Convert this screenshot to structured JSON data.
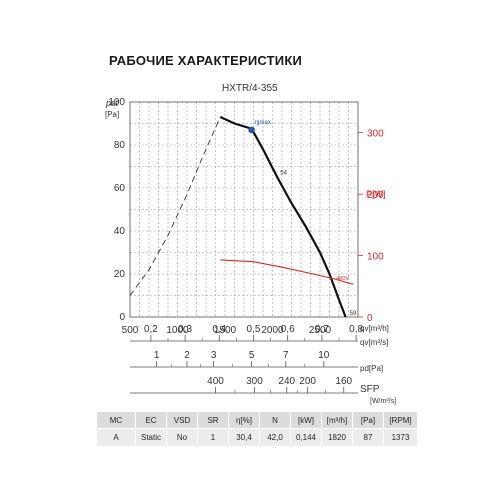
{
  "page": {
    "title": "РАБОЧИЕ ХАРАКТЕРИСТИКИ",
    "model": "HXTR/4-355"
  },
  "colors": {
    "curve": "#111111",
    "power": "#d62828",
    "etamax_point": "#2b4fb3",
    "grid": "#999999"
  },
  "chart_data": {
    "type": "line",
    "y_left": {
      "label": "pst",
      "unit": "[Pa]",
      "range": [
        0,
        100
      ],
      "ticks": [
        0,
        20,
        40,
        60,
        80,
        100
      ]
    },
    "y_right": {
      "label": "P[W]",
      "range": [
        0,
        350
      ],
      "ticks": [
        0,
        100,
        200,
        300
      ]
    },
    "x": {
      "label": "qv[m³/h]",
      "range": [
        500,
        2900
      ],
      "ticks": [
        500,
        1000,
        1500,
        2000,
        2500
      ]
    },
    "grid": true,
    "series": [
      {
        "role": "pressure",
        "curve_label": "54",
        "x": [
          1450,
          1600,
          1750,
          1800,
          1900,
          2050,
          2200,
          2350,
          2500,
          2600,
          2700,
          2770
        ],
        "y": [
          93,
          90,
          88,
          86,
          78,
          65,
          53,
          42,
          30,
          20,
          8,
          0
        ]
      },
      {
        "role": "unstable",
        "style": "dashed",
        "x": [
          500,
          700,
          900,
          1100,
          1250,
          1450
        ],
        "y": [
          10,
          22,
          38,
          57,
          73,
          93
        ]
      },
      {
        "role": "power",
        "axis": "right",
        "curve_label": "400V",
        "x": [
          1450,
          1800,
          2100,
          2400,
          2650,
          2850
        ],
        "y": [
          93,
          90,
          81,
          71,
          62,
          53
        ]
      }
    ],
    "markers": [
      {
        "label": "η|max",
        "x": 1780,
        "y": 87
      },
      {
        "label": "59",
        "x": 2770,
        "y": 0
      }
    ],
    "extra_scales": [
      {
        "label": "qv[m³/s]",
        "ticks": [
          "0,2",
          "0,3",
          "0,4",
          "0,5",
          "0,6",
          "0,7",
          "0,8"
        ],
        "tick_x_m3h": [
          720,
          1080,
          1440,
          1800,
          2160,
          2520,
          2880
        ],
        "intermediate": [
          0.15,
          0.25,
          0.35,
          0.45,
          0.55,
          0.65,
          0.75
        ]
      },
      {
        "label": "pd[Pa]",
        "ticks": [
          "1",
          "2",
          "3",
          "5",
          "7",
          "10"
        ],
        "tick_x_m3h": [
          780,
          1100,
          1380,
          1780,
          2140,
          2540
        ],
        "intermediate": [
          1.5,
          2.5,
          4,
          6,
          8.5
        ]
      },
      {
        "label": "SFP [W/m³/s]",
        "ticks": [
          "400",
          "300",
          "240",
          "200",
          "160"
        ],
        "tick_x_m3h": [
          1400,
          1810,
          2150,
          2370,
          2750
        ],
        "intermediate": [
          350,
          270,
          220,
          180
        ]
      }
    ]
  },
  "table": {
    "headers": [
      "MC",
      "EC",
      "VSD",
      "SR",
      "η[%]",
      "N",
      "[kW]",
      "[m³/h]",
      "[Pa]",
      "[RPM]"
    ],
    "row": [
      "A",
      "Static",
      "No",
      "1",
      "30,4",
      "42,0",
      "0,144",
      "1820",
      "87",
      "1373"
    ]
  }
}
